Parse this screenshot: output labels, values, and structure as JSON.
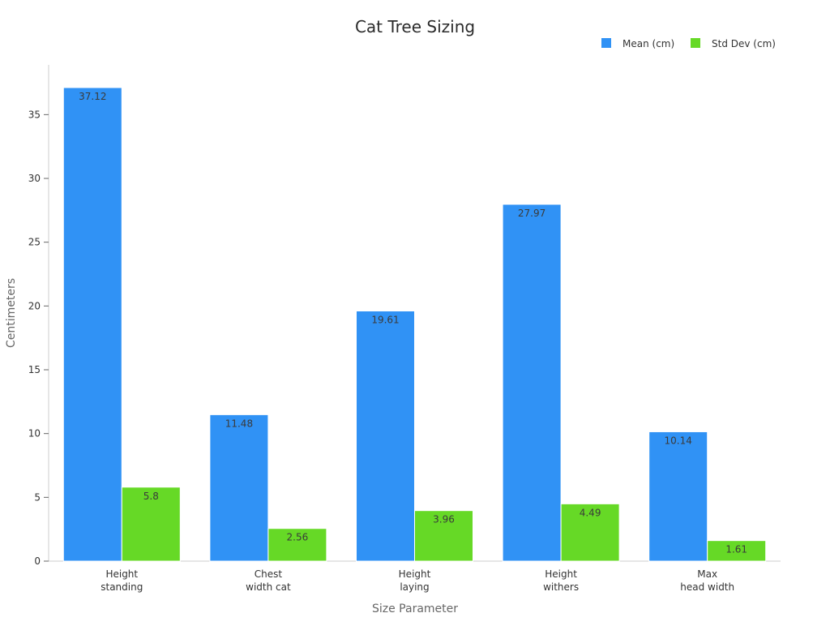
{
  "chart_data": {
    "type": "bar",
    "title": "Cat Tree Sizing",
    "xlabel": "Size Parameter",
    "ylabel": "Centimeters",
    "categories": [
      [
        "Height",
        "standing"
      ],
      [
        "Chest",
        "width cat"
      ],
      [
        "Height",
        "laying"
      ],
      [
        "Height",
        "withers"
      ],
      [
        "Max",
        "head width"
      ]
    ],
    "series": [
      {
        "name": "Mean (cm)",
        "color": "#3092f5",
        "values": [
          37.12,
          11.48,
          19.61,
          27.97,
          10.14
        ],
        "labels": [
          "37.12",
          "11.48",
          "19.61",
          "27.97",
          "10.14"
        ]
      },
      {
        "name": "Std Dev (cm)",
        "color": "#66d926",
        "values": [
          5.8,
          2.56,
          3.96,
          4.49,
          1.61
        ],
        "labels": [
          "5.8",
          "2.56",
          "3.96",
          "4.49",
          "1.61"
        ]
      }
    ],
    "ylim": [
      0,
      38.9
    ],
    "yticks": [
      0,
      5,
      10,
      15,
      20,
      25,
      30,
      35
    ],
    "ytick_labels": [
      "0",
      "5",
      "10",
      "15",
      "20",
      "25",
      "30",
      "35"
    ],
    "grid": false,
    "legend_position": "top-right"
  }
}
